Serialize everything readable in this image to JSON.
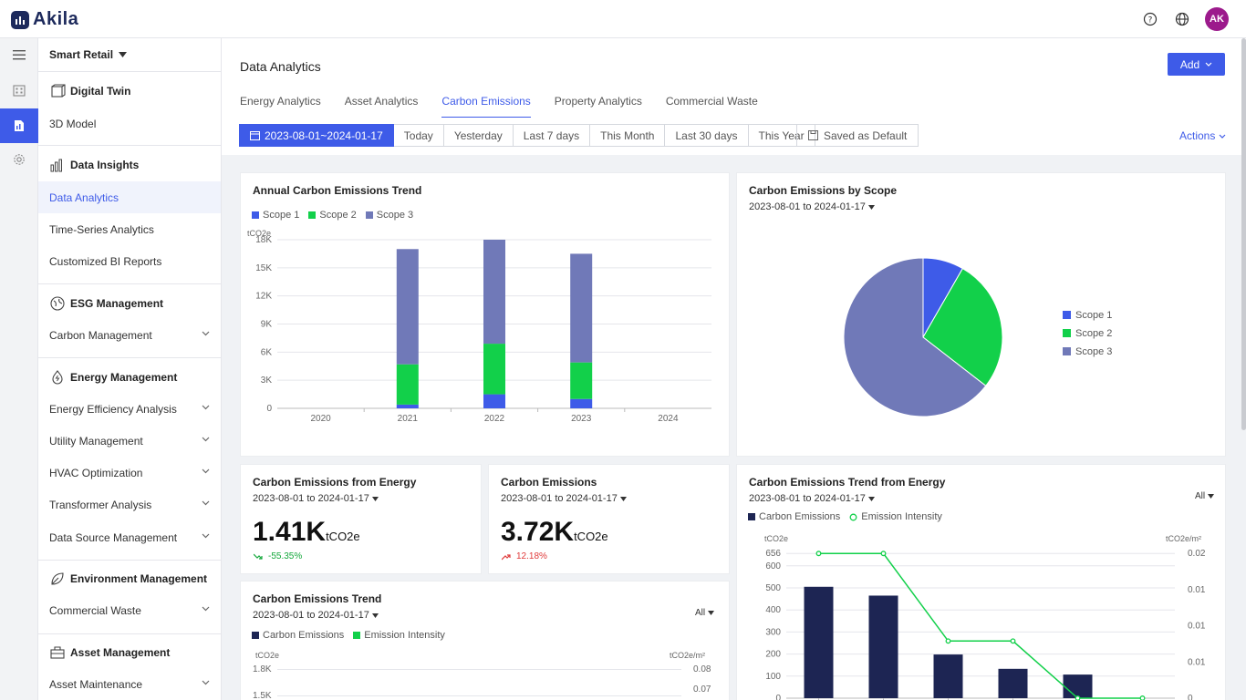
{
  "app": {
    "name": "Akila",
    "avatar_initials": "AK"
  },
  "sidebar": {
    "workspace": "Smart Retail",
    "items": [
      {
        "label": "Digital Twin",
        "type": "group"
      },
      {
        "label": "3D Model",
        "type": "item"
      },
      {
        "label": "Data Insights",
        "type": "group"
      },
      {
        "label": "Data Analytics",
        "type": "item",
        "active": true
      },
      {
        "label": "Time-Series Analytics",
        "type": "item"
      },
      {
        "label": "Customized BI Reports",
        "type": "item"
      },
      {
        "label": "ESG Management",
        "type": "group"
      },
      {
        "label": "Carbon Management",
        "type": "item",
        "expandable": true
      },
      {
        "label": "Energy Management",
        "type": "group"
      },
      {
        "label": "Energy Efficiency Analysis",
        "type": "item",
        "expandable": true
      },
      {
        "label": "Utility Management",
        "type": "item",
        "expandable": true
      },
      {
        "label": "HVAC Optimization",
        "type": "item",
        "expandable": true
      },
      {
        "label": "Transformer Analysis",
        "type": "item",
        "expandable": true
      },
      {
        "label": "Data Source Management",
        "type": "item",
        "expandable": true
      },
      {
        "label": "Environment Management",
        "type": "group"
      },
      {
        "label": "Commercial Waste",
        "type": "item",
        "expandable": true
      },
      {
        "label": "Asset Management",
        "type": "group"
      },
      {
        "label": "Asset Maintenance",
        "type": "item",
        "expandable": true
      }
    ]
  },
  "header": {
    "title": "Data Analytics",
    "add_label": "Add",
    "tabs": [
      "Energy Analytics",
      "Asset Analytics",
      "Carbon Emissions",
      "Property Analytics",
      "Commercial Waste"
    ],
    "active_tab": "Carbon Emissions",
    "date_range": "2023-08-01~2024-01-17",
    "quick_ranges": [
      "Today",
      "Yesterday",
      "Last 7 days",
      "This Month",
      "Last 30 days",
      "This Year"
    ],
    "saved_default": "Saved as Default",
    "actions": "Actions"
  },
  "cards": {
    "annual": {
      "title": "Annual Carbon Emissions Trend",
      "unit": "tCO2e"
    },
    "scope": {
      "title": "Carbon Emissions by Scope",
      "date": "2023-08-01 to 2024-01-17"
    },
    "energy": {
      "title": "Carbon Emissions from Energy",
      "date": "2023-08-01 to 2024-01-17",
      "value": "1.41K",
      "unit": "tCO2e",
      "delta": "-55.35%"
    },
    "total": {
      "title": "Carbon Emissions",
      "date": "2023-08-01 to 2024-01-17",
      "value": "3.72K",
      "unit": "tCO2e",
      "delta": "12.18%"
    },
    "trend": {
      "title": "Carbon Emissions Trend",
      "date": "2023-08-01 to 2024-01-17",
      "filter": "All",
      "legend_bar": "Carbon Emissions",
      "legend_line": "Emission Intensity",
      "unit_left": "tCO2e",
      "unit_right": "tCO2e/m²",
      "yticks_left": [
        "1.8K",
        "1.5K"
      ],
      "yticks_right": [
        "0.08",
        "0.07"
      ]
    },
    "trend_energy": {
      "title": "Carbon Emissions Trend from Energy",
      "date": "2023-08-01 to 2024-01-17",
      "filter": "All",
      "legend_bar": "Carbon Emissions",
      "legend_line": "Emission Intensity",
      "unit_left": "tCO2e",
      "unit_right": "tCO2e/m²"
    }
  },
  "colors": {
    "scope1": "#3e5be8",
    "scope2": "#12d04a",
    "scope3": "#7079b8",
    "bar_dark": "#1d2553",
    "line_green": "#12d04a",
    "accent": "#3e5be8"
  },
  "chart_data": [
    {
      "type": "bar",
      "title": "Annual Carbon Emissions Trend",
      "ylabel": "tCO2e",
      "categories": [
        "2020",
        "2021",
        "2022",
        "2023",
        "2024"
      ],
      "yticks": [
        "0",
        "3K",
        "6K",
        "9K",
        "12K",
        "15K",
        "18K"
      ],
      "ylim": [
        0,
        18000
      ],
      "stacked": true,
      "series": [
        {
          "name": "Scope 1",
          "values": [
            0,
            400,
            1500,
            1000,
            0
          ]
        },
        {
          "name": "Scope 2",
          "values": [
            0,
            4300,
            5400,
            3900,
            0
          ]
        },
        {
          "name": "Scope 3",
          "values": [
            0,
            12300,
            11100,
            11600,
            0
          ]
        }
      ]
    },
    {
      "type": "pie",
      "title": "Carbon Emissions by Scope",
      "categories": [
        "Scope 1",
        "Scope 2",
        "Scope 3"
      ],
      "values": [
        8.3,
        27.2,
        64.5
      ]
    },
    {
      "type": "bar",
      "title": "Carbon Emissions Trend from Energy",
      "ylabel": "tCO2e",
      "y2label": "tCO2e/m²",
      "yticks_left": [
        "0",
        "100",
        "200",
        "300",
        "400",
        "500",
        "600",
        "656"
      ],
      "yticks_right": [
        "0",
        "0.01",
        "0.01",
        "0.01",
        "0.02"
      ],
      "ylim": [
        0,
        656
      ],
      "series": [
        {
          "name": "Carbon Emissions",
          "values": [
            505,
            465,
            198,
            133,
            107,
            0
          ]
        },
        {
          "name": "Emission Intensity",
          "values": [
            0.02,
            0.02,
            0.0079,
            0.0079,
            0,
            0
          ]
        }
      ]
    }
  ]
}
